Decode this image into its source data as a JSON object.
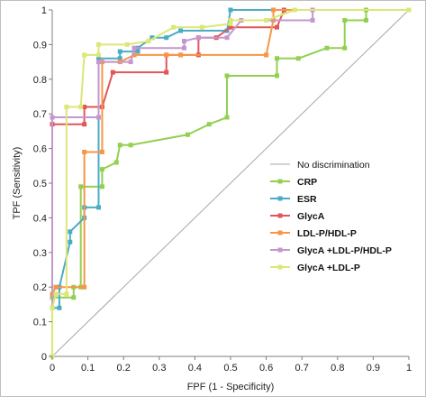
{
  "chart_data": {
    "type": "line",
    "title": "",
    "xlabel": "FPF (1 - Specificity)",
    "ylabel": "TPF (Sensitivity)",
    "xlim": [
      0,
      1
    ],
    "ylim": [
      0,
      1
    ],
    "x_ticks": [
      "0",
      "0.1",
      "0.2",
      "0.3",
      "0.4",
      "0.5",
      "0.6",
      "0.7",
      "0.8",
      "0.9",
      "1"
    ],
    "y_ticks": [
      "0",
      "0.1",
      "0.2",
      "0.3",
      "0.4",
      "0.5",
      "0.6",
      "0.7",
      "0.8",
      "0.9",
      "1"
    ],
    "grid": false,
    "legend_position": "right",
    "reference_line": {
      "name": "No discrimination",
      "color": "#a6a6a6",
      "points": [
        [
          0,
          0
        ],
        [
          1,
          1
        ]
      ]
    },
    "series": [
      {
        "name": "CRP",
        "color": "#92d050",
        "points": [
          [
            0,
            0
          ],
          [
            0,
            0.17
          ],
          [
            0.06,
            0.17
          ],
          [
            0.06,
            0.2
          ],
          [
            0.08,
            0.2
          ],
          [
            0.08,
            0.49
          ],
          [
            0.14,
            0.49
          ],
          [
            0.14,
            0.54
          ],
          [
            0.18,
            0.56
          ],
          [
            0.19,
            0.61
          ],
          [
            0.22,
            0.61
          ],
          [
            0.38,
            0.64
          ],
          [
            0.44,
            0.67
          ],
          [
            0.49,
            0.69
          ],
          [
            0.49,
            0.81
          ],
          [
            0.63,
            0.81
          ],
          [
            0.63,
            0.86
          ],
          [
            0.69,
            0.86
          ],
          [
            0.77,
            0.89
          ],
          [
            0.82,
            0.89
          ],
          [
            0.82,
            0.97
          ],
          [
            0.88,
            0.97
          ],
          [
            0.88,
            1
          ],
          [
            1,
            1
          ]
        ]
      },
      {
        "name": "ESR",
        "color": "#4bacc6",
        "points": [
          [
            0,
            0
          ],
          [
            0,
            0.14
          ],
          [
            0.02,
            0.14
          ],
          [
            0.02,
            0.2
          ],
          [
            0.05,
            0.33
          ],
          [
            0.05,
            0.36
          ],
          [
            0.09,
            0.4
          ],
          [
            0.09,
            0.43
          ],
          [
            0.13,
            0.43
          ],
          [
            0.13,
            0.86
          ],
          [
            0.19,
            0.86
          ],
          [
            0.19,
            0.88
          ],
          [
            0.24,
            0.88
          ],
          [
            0.24,
            0.89
          ],
          [
            0.28,
            0.92
          ],
          [
            0.32,
            0.92
          ],
          [
            0.36,
            0.94
          ],
          [
            0.49,
            0.94
          ],
          [
            0.5,
            1
          ],
          [
            1,
            1
          ]
        ]
      },
      {
        "name": "GlycA",
        "color": "#e15759",
        "points": [
          [
            0,
            0
          ],
          [
            0,
            0.67
          ],
          [
            0.09,
            0.67
          ],
          [
            0.09,
            0.72
          ],
          [
            0.14,
            0.72
          ],
          [
            0.17,
            0.82
          ],
          [
            0.32,
            0.82
          ],
          [
            0.32,
            0.87
          ],
          [
            0.36,
            0.87
          ],
          [
            0.41,
            0.87
          ],
          [
            0.41,
            0.92
          ],
          [
            0.46,
            0.92
          ],
          [
            0.5,
            0.95
          ],
          [
            0.63,
            0.95
          ],
          [
            0.65,
            1
          ],
          [
            1,
            1
          ]
        ]
      },
      {
        "name": "LDL-P/HDL-P",
        "color": "#f79646",
        "points": [
          [
            0,
            0
          ],
          [
            0,
            0.18
          ],
          [
            0.01,
            0.2
          ],
          [
            0.09,
            0.2
          ],
          [
            0.09,
            0.59
          ],
          [
            0.14,
            0.59
          ],
          [
            0.14,
            0.85
          ],
          [
            0.19,
            0.85
          ],
          [
            0.23,
            0.87
          ],
          [
            0.32,
            0.87
          ],
          [
            0.36,
            0.87
          ],
          [
            0.6,
            0.87
          ],
          [
            0.6,
            0.87
          ],
          [
            0.62,
            0.97
          ],
          [
            0.62,
            1
          ],
          [
            1,
            1
          ]
        ]
      },
      {
        "name": "GlycA +LDL-P/HDL-P",
        "color": "#c597cf",
        "points": [
          [
            0,
            0
          ],
          [
            0,
            0.69
          ],
          [
            0.13,
            0.69
          ],
          [
            0.13,
            0.85
          ],
          [
            0.22,
            0.85
          ],
          [
            0.23,
            0.89
          ],
          [
            0.37,
            0.89
          ],
          [
            0.37,
            0.91
          ],
          [
            0.41,
            0.92
          ],
          [
            0.49,
            0.92
          ],
          [
            0.53,
            0.97
          ],
          [
            0.73,
            0.97
          ],
          [
            0.73,
            1
          ],
          [
            1,
            1
          ]
        ]
      },
      {
        "name": "GlycA +LDL-P",
        "color": "#dce775",
        "points": [
          [
            0,
            0
          ],
          [
            0,
            0.14
          ],
          [
            0.01,
            0.18
          ],
          [
            0.04,
            0.18
          ],
          [
            0.04,
            0.72
          ],
          [
            0.08,
            0.72
          ],
          [
            0.09,
            0.87
          ],
          [
            0.13,
            0.87
          ],
          [
            0.13,
            0.9
          ],
          [
            0.21,
            0.9
          ],
          [
            0.27,
            0.91
          ],
          [
            0.34,
            0.95
          ],
          [
            0.42,
            0.95
          ],
          [
            0.5,
            0.96
          ],
          [
            0.5,
            0.97
          ],
          [
            0.6,
            0.97
          ],
          [
            0.68,
            1
          ],
          [
            1,
            1
          ]
        ]
      }
    ]
  }
}
